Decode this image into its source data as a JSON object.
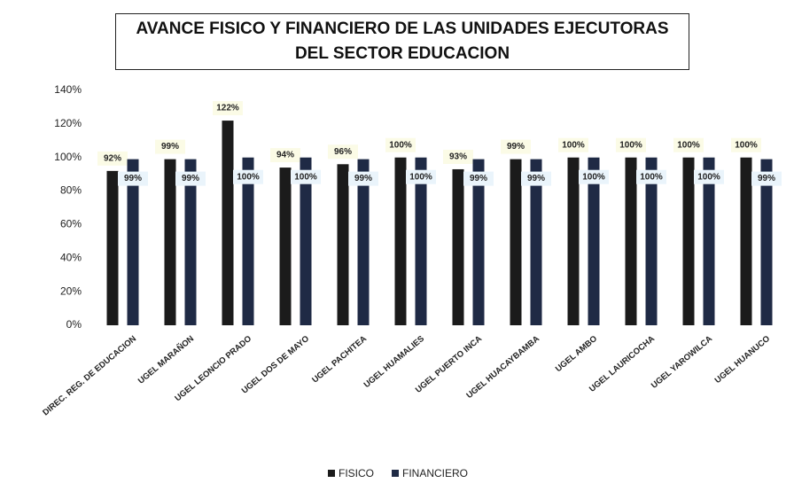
{
  "chart_data": {
    "type": "bar",
    "title": "AVANCE FISICO Y FINANCIERO DE LAS UNIDADES EJECUTORAS DEL SECTOR EDUCACION",
    "categories": [
      "DIREC. REG. DE EDUCACION",
      "UGEL MARAÑON",
      "UGEL LEONCIO PRADO",
      "UGEL DOS DE MAYO",
      "UGEL PACHITEA",
      "UGEL HUAMALIES",
      "UGEL PUERTO INCA",
      "UGEL HUACAYBAMBA",
      "UGEL AMBO",
      "UGEL LAURICOCHA",
      "UGEL YAROWILCA",
      "UGEL HUANUCO"
    ],
    "series": [
      {
        "name": "FISICO",
        "color": "#1b1b1b",
        "values": [
          92,
          99,
          122,
          94,
          96,
          100,
          93,
          99,
          100,
          100,
          100,
          100
        ],
        "value_labels": [
          "92%",
          "99%",
          "122%",
          "94%",
          "96%",
          "100%",
          "93%",
          "99%",
          "100%",
          "100%",
          "100%",
          "100%"
        ]
      },
      {
        "name": "FINANCIERO",
        "color": "#1f2a45",
        "values": [
          99,
          99,
          100,
          100,
          99,
          100,
          99,
          99,
          100,
          100,
          100,
          99
        ],
        "value_labels": [
          "99%",
          "99%",
          "100%",
          "100%",
          "99%",
          "100%",
          "99%",
          "99%",
          "100%",
          "100%",
          "100%",
          "99%"
        ]
      }
    ],
    "ylim": [
      0,
      140
    ],
    "yticks": [
      {
        "value": 0,
        "label": "0%"
      },
      {
        "value": 20,
        "label": "20%"
      },
      {
        "value": 40,
        "label": "40%"
      },
      {
        "value": 60,
        "label": "60%"
      },
      {
        "value": 80,
        "label": "80%"
      },
      {
        "value": 100,
        "label": "100%"
      },
      {
        "value": 120,
        "label": "120%"
      },
      {
        "value": 140,
        "label": "140%"
      }
    ],
    "grid": false
  }
}
